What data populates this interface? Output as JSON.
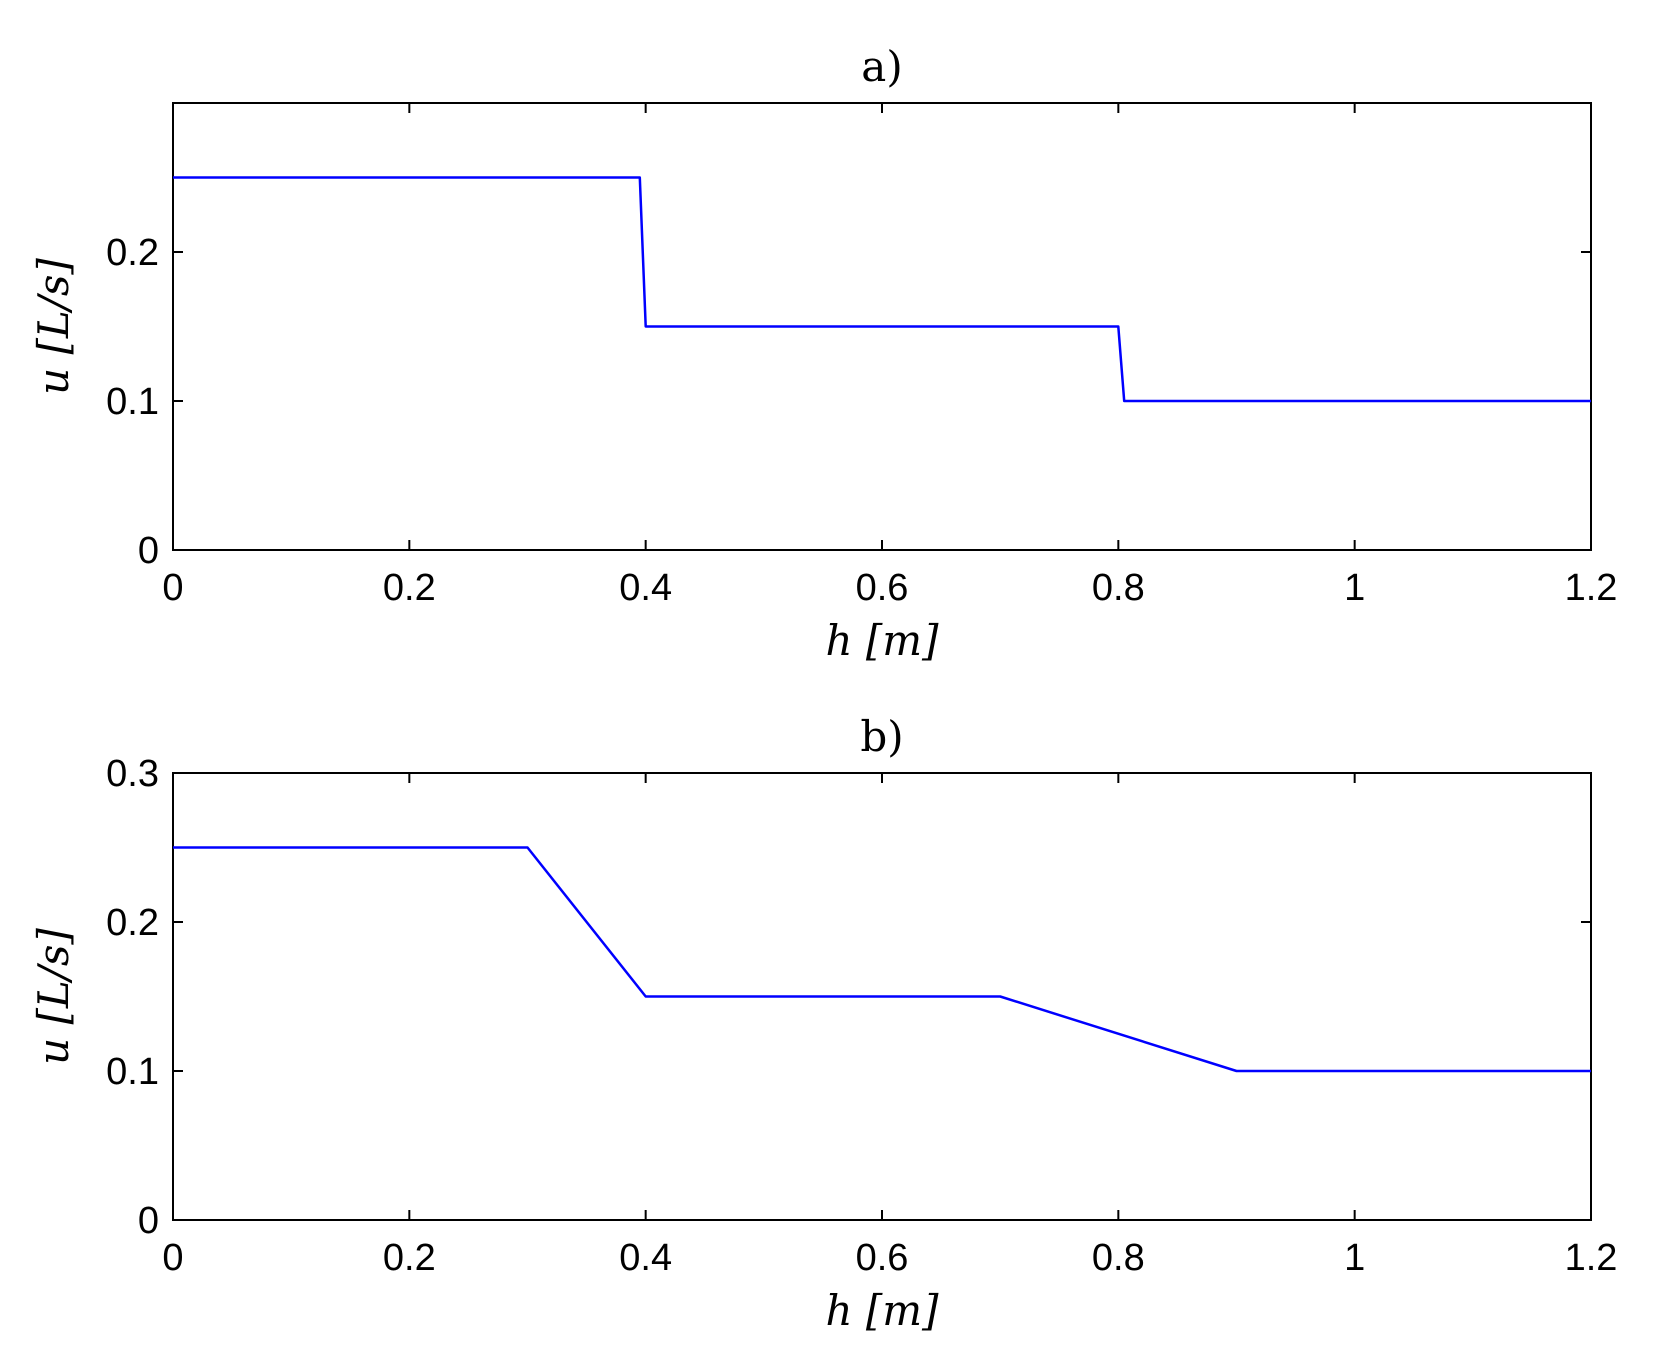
{
  "chart_data": [
    {
      "type": "line",
      "title": "a)",
      "xlabel": "h [m]",
      "ylabel": "u [L/s]",
      "xlim": [
        0,
        1.2
      ],
      "ylim": [
        0,
        0.3
      ],
      "xticks": [
        "0",
        "0.2",
        "0.4",
        "0.6",
        "0.8",
        "1",
        "1.2"
      ],
      "yticks": [
        "0",
        "0.1",
        "0.2"
      ],
      "grid": false,
      "series": [
        {
          "color": "#0000ff",
          "x": [
            0,
            0.395,
            0.4,
            0.8,
            0.805,
            1.2
          ],
          "y": [
            0.25,
            0.25,
            0.15,
            0.15,
            0.1,
            0.1
          ]
        }
      ]
    },
    {
      "type": "line",
      "title": "b)",
      "xlabel": "h [m]",
      "ylabel": "u [L/s]",
      "xlim": [
        0,
        1.2
      ],
      "ylim": [
        0,
        0.3
      ],
      "xticks": [
        "0",
        "0.2",
        "0.4",
        "0.6",
        "0.8",
        "1",
        "1.2"
      ],
      "yticks": [
        "0",
        "0.1",
        "0.2",
        "0.3"
      ],
      "grid": false,
      "series": [
        {
          "color": "#0000ff",
          "x": [
            0,
            0.3,
            0.4,
            0.7,
            0.9,
            1.2
          ],
          "y": [
            0.25,
            0.25,
            0.15,
            0.15,
            0.1,
            0.1
          ]
        }
      ]
    }
  ]
}
